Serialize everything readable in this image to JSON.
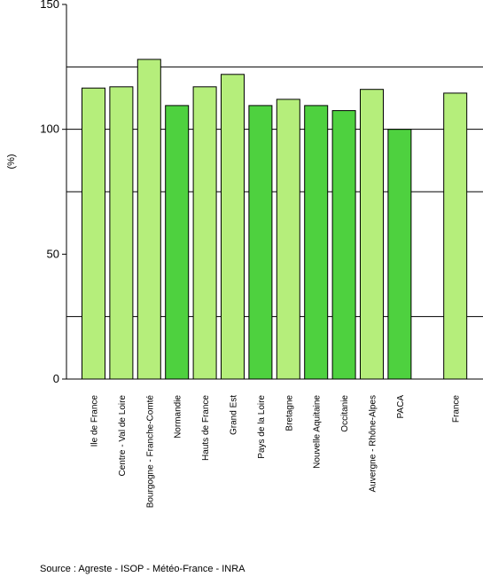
{
  "chart_data": {
    "type": "bar",
    "title": "",
    "xlabel": "",
    "ylabel": "(%)",
    "ylim": [
      0,
      150
    ],
    "yticks": [
      0,
      50,
      100,
      150
    ],
    "categories": [
      "Ile de France",
      "Centre - Val de Loire",
      "Bourgogne - Franche-Comté",
      "Normandie",
      "Hauts de France",
      "Grand Est",
      "Pays de la Loire",
      "Bretagne",
      "Nouvelle Aquitaine",
      "Occitanie",
      "Auvergne - Rhône-Alpes",
      "PACA",
      "France"
    ],
    "values": [
      116.5,
      117,
      128,
      109.5,
      117,
      122,
      109.5,
      112,
      109.5,
      107.5,
      116,
      100,
      114.5
    ],
    "colors": [
      "#b5ee7b",
      "#b5ee7b",
      "#b5ee7b",
      "#4ed13f",
      "#b5ee7b",
      "#b5ee7b",
      "#4ed13f",
      "#b5ee7b",
      "#4ed13f",
      "#4ed13f",
      "#b5ee7b",
      "#4ed13f",
      "#b5ee7b"
    ],
    "reference_lines": [
      25,
      75,
      100,
      125
    ],
    "grid": true
  },
  "source": "Source : Agreste - ISOP - Météo-France - INRA"
}
